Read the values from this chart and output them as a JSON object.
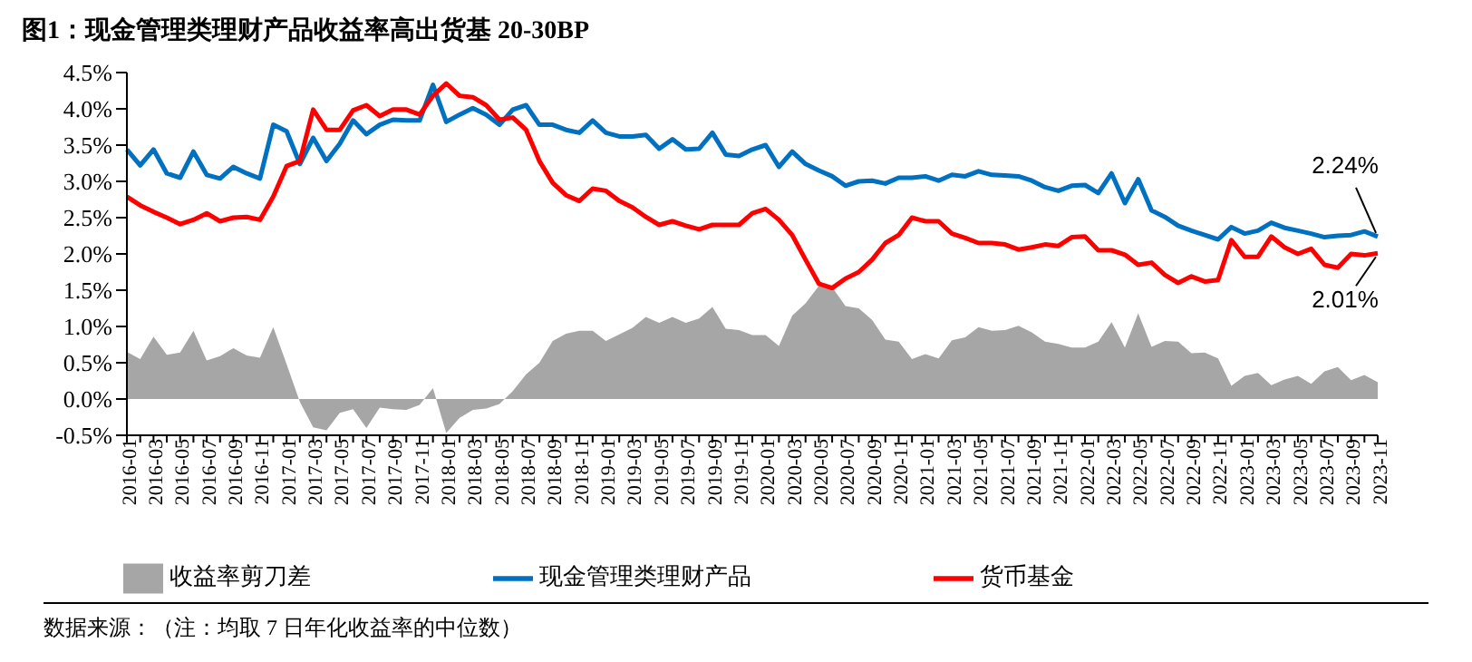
{
  "chart_data": {
    "type": "line",
    "title": "图1：现金管理类理财产品收益率高出货基 20-30BP",
    "categories": [
      "2016-01",
      null,
      "2016-03",
      null,
      "2016-05",
      null,
      "2016-07",
      null,
      "2016-09",
      null,
      "2016-11",
      null,
      "2017-01",
      null,
      "2017-03",
      null,
      "2017-05",
      null,
      "2017-07",
      null,
      "2017-09",
      null,
      "2017-11",
      null,
      "2018-01",
      null,
      "2018-03",
      null,
      "2018-05",
      null,
      "2018-07",
      null,
      "2018-09",
      null,
      "2018-11",
      null,
      "2019-01",
      null,
      "2019-03",
      null,
      "2019-05",
      null,
      "2019-07",
      null,
      "2019-09",
      null,
      "2019-11",
      null,
      "2020-01",
      null,
      "2020-03",
      null,
      "2020-05",
      null,
      "2020-07",
      null,
      "2020-09",
      null,
      "2020-11",
      null,
      "2021-01",
      null,
      "2021-03",
      null,
      "2021-05",
      null,
      "2021-07",
      null,
      "2021-09",
      null,
      "2021-11",
      null,
      "2022-01",
      null,
      "2022-03",
      null,
      "2022-05",
      null,
      "2022-07",
      null,
      "2022-09",
      null,
      "2022-11",
      null,
      "2023-01",
      null,
      "2023-03",
      null,
      "2023-05",
      null,
      "2023-07",
      null,
      "2023-09",
      null,
      "2023-11"
    ],
    "series": [
      {
        "name": "收益率剪刀差",
        "type": "area",
        "color": "#a6a6a6",
        "values": [
          0.65,
          0.55,
          0.86,
          0.61,
          0.64,
          0.94,
          0.53,
          0.59,
          0.7,
          0.6,
          0.57,
          0.99,
          0.48,
          -0.04,
          -0.39,
          -0.43,
          -0.19,
          -0.14,
          -0.4,
          -0.12,
          -0.14,
          -0.15,
          -0.08,
          0.15,
          -0.47,
          -0.26,
          -0.15,
          -0.13,
          -0.07,
          0.11,
          0.34,
          0.5,
          0.8,
          0.9,
          0.94,
          0.94,
          0.8,
          0.89,
          0.98,
          1.13,
          1.05,
          1.13,
          1.05,
          1.11,
          1.27,
          0.97,
          0.95,
          0.88,
          0.88,
          0.73,
          1.15,
          1.32,
          1.56,
          1.54,
          1.28,
          1.25,
          1.09,
          0.82,
          0.79,
          0.55,
          0.62,
          0.56,
          0.81,
          0.85,
          0.99,
          0.94,
          0.95,
          1.01,
          0.92,
          0.79,
          0.76,
          0.71,
          0.71,
          0.79,
          1.06,
          0.71,
          1.18,
          0.72,
          0.8,
          0.79,
          0.63,
          0.64,
          0.56,
          0.18,
          0.32,
          0.36,
          0.19,
          0.27,
          0.32,
          0.21,
          0.38,
          0.44,
          0.26,
          0.33,
          0.23
        ]
      },
      {
        "name": "现金管理类理财产品",
        "color": "#0070c0",
        "values": [
          3.44,
          3.22,
          3.44,
          3.11,
          3.05,
          3.41,
          3.09,
          3.04,
          3.2,
          3.11,
          3.04,
          3.78,
          3.69,
          3.24,
          3.6,
          3.28,
          3.52,
          3.84,
          3.65,
          3.78,
          3.85,
          3.84,
          3.84,
          4.33,
          3.82,
          3.92,
          4.01,
          3.92,
          3.78,
          3.99,
          4.05,
          3.78,
          3.78,
          3.71,
          3.67,
          3.84,
          3.67,
          3.62,
          3.62,
          3.64,
          3.45,
          3.58,
          3.44,
          3.45,
          3.67,
          3.37,
          3.35,
          3.44,
          3.5,
          3.2,
          3.41,
          3.24,
          3.15,
          3.07,
          2.94,
          3.0,
          3.01,
          2.97,
          3.05,
          3.05,
          3.07,
          3.01,
          3.09,
          3.07,
          3.14,
          3.09,
          3.08,
          3.07,
          3.01,
          2.92,
          2.87,
          2.94,
          2.95,
          2.84,
          3.11,
          2.7,
          3.03,
          2.6,
          2.51,
          2.39,
          2.32,
          2.26,
          2.2,
          2.37,
          2.28,
          2.32,
          2.43,
          2.36,
          2.32,
          2.28,
          2.23,
          2.25,
          2.26,
          2.31,
          2.24
        ]
      },
      {
        "name": "货币基金",
        "color": "#ff0000",
        "values": [
          2.79,
          2.67,
          2.58,
          2.5,
          2.41,
          2.47,
          2.56,
          2.45,
          2.5,
          2.51,
          2.47,
          2.79,
          3.21,
          3.28,
          3.99,
          3.71,
          3.71,
          3.98,
          4.05,
          3.9,
          3.99,
          3.99,
          3.92,
          4.18,
          4.35,
          4.18,
          4.16,
          4.05,
          3.85,
          3.88,
          3.71,
          3.28,
          2.98,
          2.81,
          2.73,
          2.9,
          2.87,
          2.73,
          2.64,
          2.51,
          2.4,
          2.45,
          2.39,
          2.34,
          2.4,
          2.4,
          2.4,
          2.56,
          2.62,
          2.47,
          2.26,
          1.92,
          1.59,
          1.53,
          1.66,
          1.75,
          1.92,
          2.15,
          2.26,
          2.5,
          2.45,
          2.45,
          2.28,
          2.22,
          2.15,
          2.15,
          2.13,
          2.06,
          2.09,
          2.13,
          2.11,
          2.23,
          2.24,
          2.05,
          2.05,
          1.99,
          1.85,
          1.88,
          1.71,
          1.6,
          1.69,
          1.62,
          1.64,
          2.19,
          1.96,
          1.96,
          2.24,
          2.09,
          2.0,
          2.07,
          1.85,
          1.81,
          2.0,
          1.98,
          2.01
        ]
      }
    ],
    "ylim": [
      -0.5,
      4.5
    ],
    "yticks": [
      {
        "value": -0.5,
        "label": "-0.5%"
      },
      {
        "value": 0,
        "label": "0.0%"
      },
      {
        "value": 0.5,
        "label": "0.5%"
      },
      {
        "value": 1,
        "label": "1.0%"
      },
      {
        "value": 1.5,
        "label": "1.5%"
      },
      {
        "value": 2,
        "label": "2.0%"
      },
      {
        "value": 2.5,
        "label": "2.5%"
      },
      {
        "value": 3,
        "label": "3.0%"
      },
      {
        "value": 3.5,
        "label": "3.5%"
      },
      {
        "value": 4,
        "label": "4.0%"
      },
      {
        "value": 4.5,
        "label": "4.5%"
      }
    ],
    "grid": false,
    "legend": "bottom",
    "marker": "none",
    "annotations": [
      {
        "text": "2.24%",
        "x": "2023-11",
        "y": 2.24
      },
      {
        "text": "2.01%",
        "x": "2023-11",
        "y": 2.01
      },
      "数据来源：（注：均取 7 日年化收益率的中位数）"
    ]
  }
}
